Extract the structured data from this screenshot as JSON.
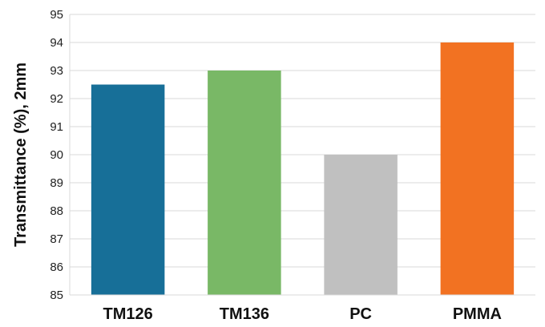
{
  "chart_data": {
    "type": "bar",
    "title": "",
    "xlabel": "",
    "ylabel": "Transmittance (%),   2mm",
    "categories": [
      "TM126",
      "TM136",
      "PC",
      "PMMA"
    ],
    "values": [
      92.5,
      93,
      90,
      94
    ],
    "colors": [
      "#176f98",
      "#79b866",
      "#c0c0c0",
      "#f27222"
    ],
    "ylim": [
      85,
      95
    ],
    "yticks": [
      85,
      86,
      87,
      88,
      89,
      90,
      91,
      92,
      93,
      94,
      95
    ],
    "grid": true,
    "legend": "none"
  }
}
